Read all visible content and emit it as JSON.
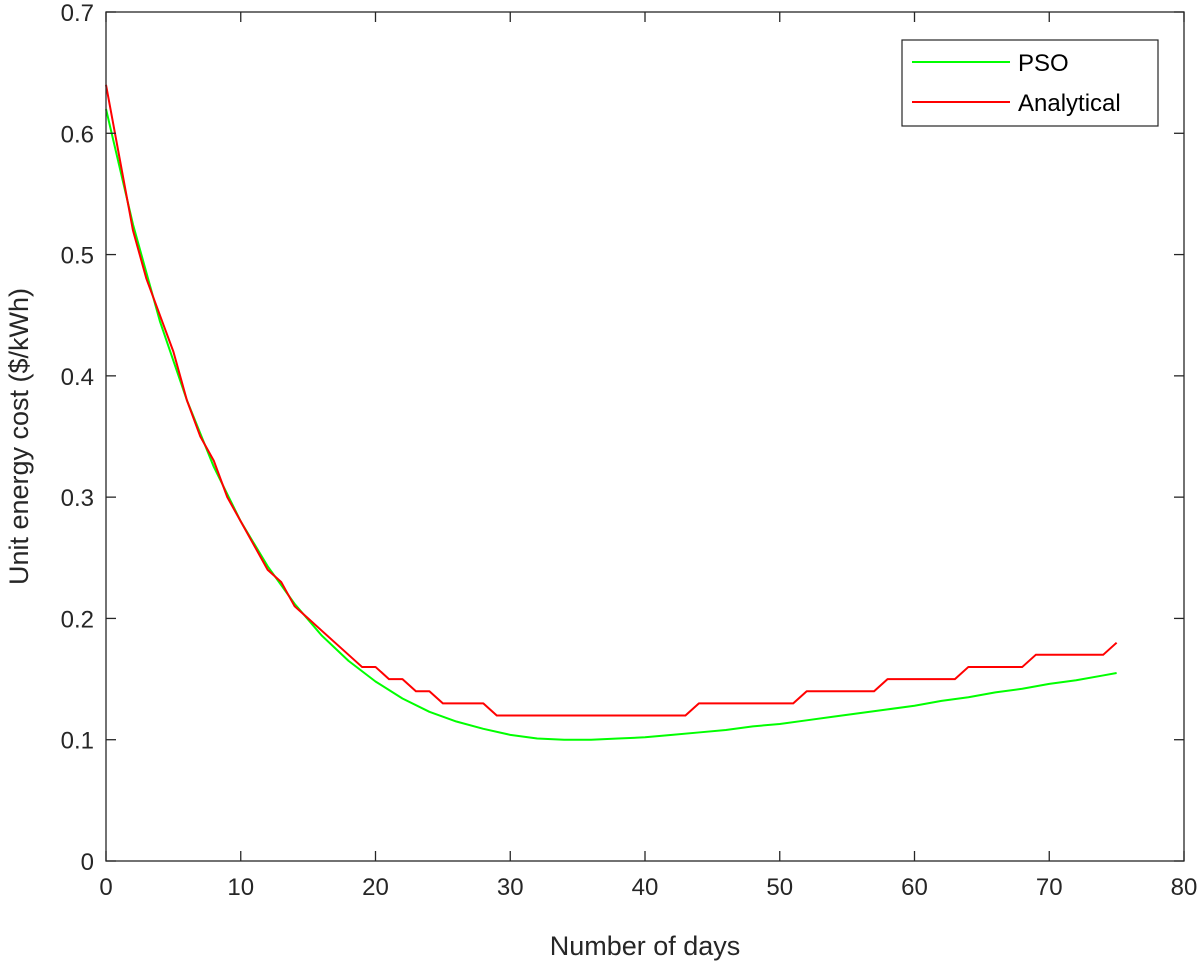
{
  "chart_data": {
    "type": "line",
    "title": "",
    "xlabel": "Number of days",
    "ylabel": "Unit energy cost ($/kWh)",
    "xlim": [
      0,
      80
    ],
    "ylim": [
      0,
      0.7
    ],
    "xticks": [
      0,
      10,
      20,
      30,
      40,
      50,
      60,
      70,
      80
    ],
    "yticks": [
      0,
      0.1,
      0.2,
      0.3,
      0.4,
      0.5,
      0.6,
      0.7
    ],
    "xtick_labels": [
      "0",
      "10",
      "20",
      "30",
      "40",
      "50",
      "60",
      "70",
      "80"
    ],
    "ytick_labels": [
      "0",
      "0.1",
      "0.2",
      "0.3",
      "0.4",
      "0.5",
      "0.6",
      "0.7"
    ],
    "grid": false,
    "legend_position": "top-right",
    "series": [
      {
        "name": "PSO",
        "color": "#00ff00",
        "x": [
          0,
          2,
          4,
          6,
          8,
          10,
          12,
          14,
          16,
          18,
          20,
          22,
          24,
          26,
          28,
          30,
          32,
          34,
          35,
          36,
          38,
          40,
          42,
          44,
          46,
          48,
          50,
          52,
          54,
          56,
          58,
          60,
          62,
          64,
          66,
          68,
          70,
          72,
          74,
          75
        ],
        "y": [
          0.62,
          0.525,
          0.445,
          0.38,
          0.325,
          0.28,
          0.243,
          0.212,
          0.186,
          0.165,
          0.148,
          0.134,
          0.123,
          0.115,
          0.109,
          0.104,
          0.101,
          0.1,
          0.1,
          0.1,
          0.101,
          0.102,
          0.104,
          0.106,
          0.108,
          0.111,
          0.113,
          0.116,
          0.119,
          0.122,
          0.125,
          0.128,
          0.132,
          0.135,
          0.139,
          0.142,
          0.146,
          0.149,
          0.153,
          0.155
        ]
      },
      {
        "name": "Analytical",
        "color": "#ff0000",
        "x": [
          0,
          1,
          2,
          3,
          4,
          5,
          6,
          7,
          8,
          9,
          10,
          11,
          12,
          13,
          14,
          15,
          16,
          17,
          18,
          19,
          20,
          21,
          22,
          23,
          24,
          25,
          26,
          27,
          28,
          29,
          30,
          31,
          32,
          33,
          34,
          35,
          36,
          37,
          38,
          39,
          40,
          41,
          42,
          43,
          44,
          45,
          46,
          47,
          48,
          49,
          50,
          51,
          52,
          53,
          54,
          55,
          56,
          57,
          58,
          59,
          60,
          61,
          62,
          63,
          64,
          65,
          66,
          67,
          68,
          69,
          70,
          71,
          72,
          73,
          74,
          75
        ],
        "y": [
          0.64,
          0.58,
          0.52,
          0.48,
          0.45,
          0.42,
          0.38,
          0.35,
          0.33,
          0.3,
          0.28,
          0.26,
          0.24,
          0.23,
          0.21,
          0.2,
          0.19,
          0.18,
          0.17,
          0.16,
          0.16,
          0.15,
          0.15,
          0.14,
          0.14,
          0.13,
          0.13,
          0.13,
          0.13,
          0.12,
          0.12,
          0.12,
          0.12,
          0.12,
          0.12,
          0.12,
          0.12,
          0.12,
          0.12,
          0.12,
          0.12,
          0.12,
          0.12,
          0.12,
          0.13,
          0.13,
          0.13,
          0.13,
          0.13,
          0.13,
          0.13,
          0.13,
          0.14,
          0.14,
          0.14,
          0.14,
          0.14,
          0.14,
          0.15,
          0.15,
          0.15,
          0.15,
          0.15,
          0.15,
          0.16,
          0.16,
          0.16,
          0.16,
          0.16,
          0.17,
          0.17,
          0.17,
          0.17,
          0.17,
          0.17,
          0.18
        ]
      }
    ]
  }
}
